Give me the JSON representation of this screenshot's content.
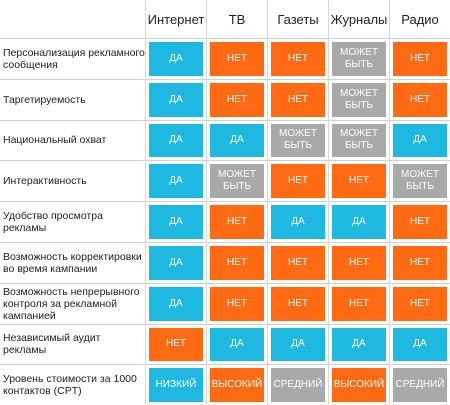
{
  "columns": [
    "Интернет",
    "ТВ",
    "Газеты",
    "Журналы",
    "Радио"
  ],
  "colors": {
    "yes": "#1fb8e0",
    "no": "#ff6a13",
    "maybe": "#a9a9a9"
  },
  "rows": [
    {
      "label": "Персонализация рекламного сообщения",
      "cells": [
        {
          "text": "ДА",
          "tone": "blue"
        },
        {
          "text": "НЕТ",
          "tone": "orange"
        },
        {
          "text": "НЕТ",
          "tone": "orange"
        },
        {
          "text": "МОЖЕТ БЫТЬ",
          "tone": "gray"
        },
        {
          "text": "НЕТ",
          "tone": "orange"
        }
      ]
    },
    {
      "label": "Таргетируемость",
      "cells": [
        {
          "text": "ДА",
          "tone": "blue"
        },
        {
          "text": "НЕТ",
          "tone": "orange"
        },
        {
          "text": "НЕТ",
          "tone": "orange"
        },
        {
          "text": "МОЖЕТ БЫТЬ",
          "tone": "gray"
        },
        {
          "text": "НЕТ",
          "tone": "orange"
        }
      ]
    },
    {
      "label": "Национальный охват",
      "cells": [
        {
          "text": "ДА",
          "tone": "blue"
        },
        {
          "text": "ДА",
          "tone": "blue"
        },
        {
          "text": "МОЖЕТ БЫТЬ",
          "tone": "gray"
        },
        {
          "text": "МОЖЕТ БЫТЬ",
          "tone": "gray"
        },
        {
          "text": "ДА",
          "tone": "blue"
        }
      ]
    },
    {
      "label": "Интерактивность",
      "cells": [
        {
          "text": "ДА",
          "tone": "blue"
        },
        {
          "text": "МОЖЕТ БЫТЬ",
          "tone": "gray"
        },
        {
          "text": "НЕТ",
          "tone": "orange"
        },
        {
          "text": "НЕТ",
          "tone": "orange"
        },
        {
          "text": "МОЖЕТ БЫТЬ",
          "tone": "gray"
        }
      ]
    },
    {
      "label": "Удобство просмотра рекламы",
      "cells": [
        {
          "text": "ДА",
          "tone": "blue"
        },
        {
          "text": "НЕТ",
          "tone": "orange"
        },
        {
          "text": "ДА",
          "tone": "blue"
        },
        {
          "text": "ДА",
          "tone": "blue"
        },
        {
          "text": "НЕТ",
          "tone": "orange"
        }
      ]
    },
    {
      "label": "Возможность корректировки во время кампании",
      "cells": [
        {
          "text": "ДА",
          "tone": "blue"
        },
        {
          "text": "НЕТ",
          "tone": "orange"
        },
        {
          "text": "НЕТ",
          "tone": "orange"
        },
        {
          "text": "НЕТ",
          "tone": "orange"
        },
        {
          "text": "НЕТ",
          "tone": "orange"
        }
      ]
    },
    {
      "label": "Возможность непрерывного контроля за рекламной кампанией",
      "cells": [
        {
          "text": "ДА",
          "tone": "blue"
        },
        {
          "text": "НЕТ",
          "tone": "orange"
        },
        {
          "text": "НЕТ",
          "tone": "orange"
        },
        {
          "text": "НЕТ",
          "tone": "orange"
        },
        {
          "text": "НЕТ",
          "tone": "orange"
        }
      ]
    },
    {
      "label": "Независимый аудит рекламы",
      "cells": [
        {
          "text": "НЕТ",
          "tone": "orange"
        },
        {
          "text": "ДА",
          "tone": "blue"
        },
        {
          "text": "ДА",
          "tone": "blue"
        },
        {
          "text": "ДА",
          "tone": "blue"
        },
        {
          "text": "ДА",
          "tone": "blue"
        }
      ]
    },
    {
      "label": "Уровень стоимости за 1000 контактов (CPT)",
      "cells": [
        {
          "text": "НИЗКИЙ",
          "tone": "blue"
        },
        {
          "text": "ВЫСОКИЙ",
          "tone": "orange"
        },
        {
          "text": "СРЕДНИЙ",
          "tone": "gray"
        },
        {
          "text": "ВЫСОКИЙ",
          "tone": "orange"
        },
        {
          "text": "СРЕДНИЙ",
          "tone": "gray"
        }
      ]
    }
  ]
}
